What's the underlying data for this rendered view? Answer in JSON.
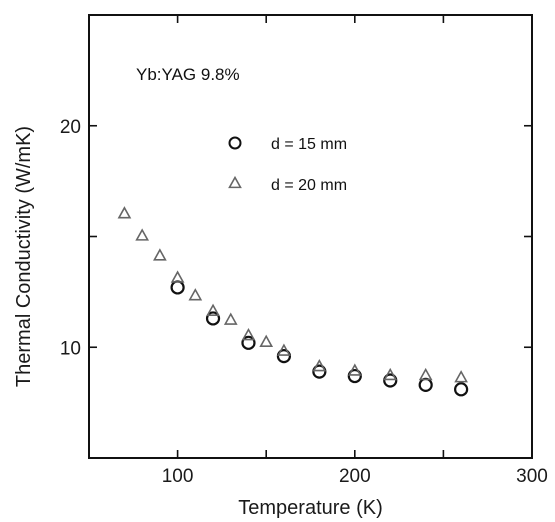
{
  "chart_data": {
    "type": "scatter",
    "annotation": "Yb:YAG 9.8%",
    "xlabel": "Temperature (K)",
    "ylabel": "Thermal Conductivity (W/mK)",
    "xlim": [
      50,
      300
    ],
    "ylim": [
      5,
      25
    ],
    "x_tick_labels": [
      {
        "value": 100,
        "label": "100"
      },
      {
        "value": 200,
        "label": "200"
      },
      {
        "value": 300,
        "label": "300"
      }
    ],
    "y_tick_labels": [
      {
        "value": 10,
        "label": "10"
      },
      {
        "value": 20,
        "label": "20"
      }
    ],
    "x_tick_values": [
      100,
      150,
      200,
      250,
      300
    ],
    "y_tick_values": [
      10,
      15,
      20
    ],
    "legend_position": "upper-middle",
    "series": [
      {
        "name": "d = 15 mm",
        "marker": "circle",
        "color": "#111111",
        "points": [
          {
            "x": 100,
            "y": 12.7
          },
          {
            "x": 120,
            "y": 11.3
          },
          {
            "x": 140,
            "y": 10.2
          },
          {
            "x": 160,
            "y": 9.6
          },
          {
            "x": 180,
            "y": 8.9
          },
          {
            "x": 200,
            "y": 8.7
          },
          {
            "x": 220,
            "y": 8.5
          },
          {
            "x": 240,
            "y": 8.3
          },
          {
            "x": 260,
            "y": 8.1
          }
        ]
      },
      {
        "name": "d = 20 mm",
        "marker": "triangle",
        "color": "#666666",
        "points": [
          {
            "x": 70,
            "y": 16.0
          },
          {
            "x": 80,
            "y": 15.0
          },
          {
            "x": 90,
            "y": 14.1
          },
          {
            "x": 100,
            "y": 13.1
          },
          {
            "x": 110,
            "y": 12.3
          },
          {
            "x": 120,
            "y": 11.6
          },
          {
            "x": 130,
            "y": 11.2
          },
          {
            "x": 140,
            "y": 10.5
          },
          {
            "x": 150,
            "y": 10.2
          },
          {
            "x": 160,
            "y": 9.8
          },
          {
            "x": 180,
            "y": 9.1
          },
          {
            "x": 200,
            "y": 8.9
          },
          {
            "x": 220,
            "y": 8.7
          },
          {
            "x": 240,
            "y": 8.7
          },
          {
            "x": 260,
            "y": 8.6
          }
        ]
      }
    ]
  }
}
